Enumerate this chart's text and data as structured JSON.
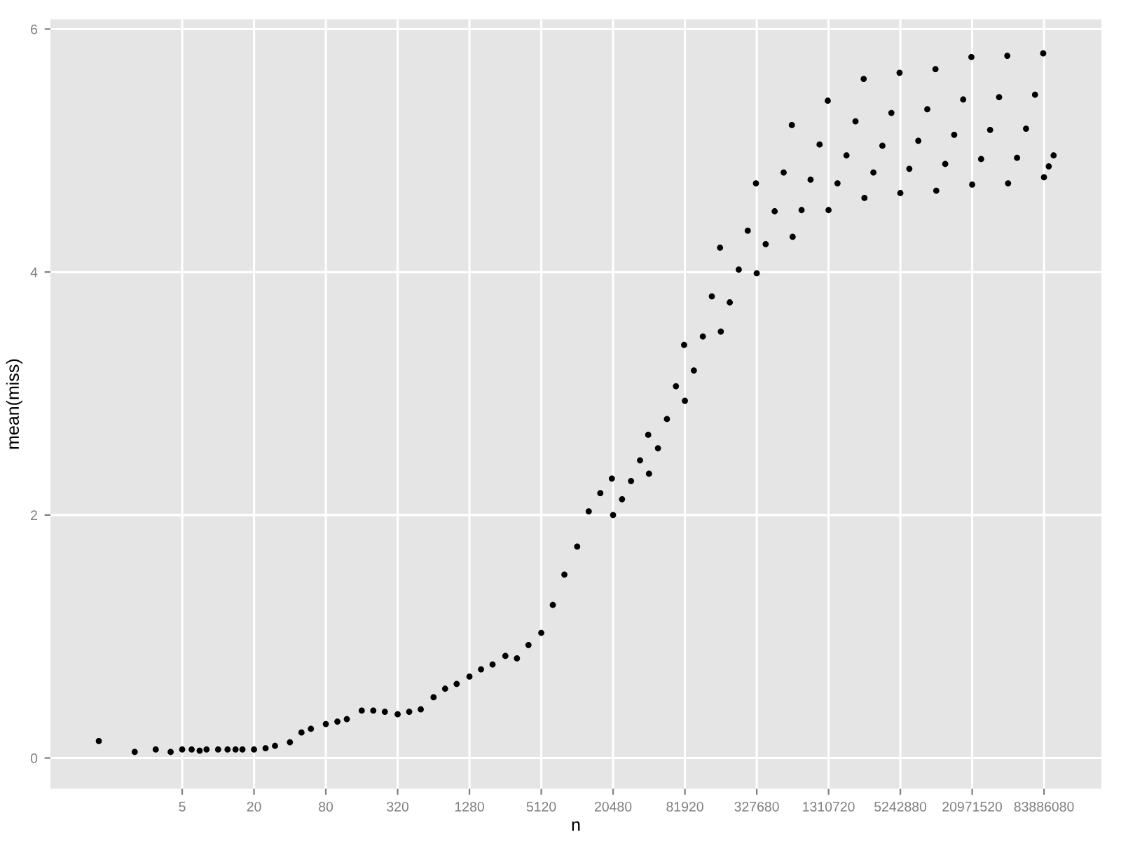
{
  "chart_data": {
    "type": "scatter",
    "xlabel": "n",
    "ylabel": "mean(miss)",
    "log": "x",
    "grid": true,
    "marker": "circle",
    "color": "#000000",
    "xlim": [
      0.393,
      254000000
    ],
    "ylim": [
      -0.254,
      6.08
    ],
    "xticks": [
      5,
      20,
      80,
      320,
      1280,
      5120,
      20480,
      81920,
      327680,
      1310720,
      5242880,
      20971520,
      83886080
    ],
    "yticks": [
      0,
      2,
      4,
      6
    ],
    "x": [
      1,
      2,
      3,
      4,
      5,
      6,
      7,
      8,
      10,
      12,
      14,
      16,
      20,
      25,
      30,
      40,
      50,
      60,
      80,
      100,
      120,
      160,
      200,
      250,
      320,
      400,
      500,
      640,
      800,
      1000,
      1280,
      1600,
      2000,
      2560,
      3200,
      4000,
      5120,
      6400,
      8000,
      10240,
      12800,
      16000,
      20000,
      20480,
      24351,
      28959,
      34447,
      40346,
      40960,
      48701,
      57917,
      68895,
      80691,
      81920,
      97403,
      115835,
      137789,
      161382,
      163840,
      194806,
      231670,
      275579,
      322765,
      327680,
      389612,
      463340,
      551158,
      645530,
      655360,
      779223,
      926679,
      1102316,
      1291059,
      1310720,
      1558446,
      1853358,
      2204631,
      2582118,
      2621440,
      3116892,
      3706716,
      4409262,
      5164237,
      5242880,
      6233784,
      7413432,
      8818524,
      10328474,
      10485760,
      12467569,
      14826865,
      17637048,
      20656947,
      20971520,
      24935137,
      29653729,
      35274097,
      41313894,
      41943040,
      49870275,
      59307459,
      70548193,
      82627789,
      83886080,
      92000000,
      101000000
    ],
    "values": [
      0.14,
      0.05,
      0.07,
      0.05,
      0.07,
      0.07,
      0.06,
      0.07,
      0.07,
      0.07,
      0.07,
      0.07,
      0.07,
      0.08,
      0.1,
      0.13,
      0.21,
      0.24,
      0.28,
      0.3,
      0.32,
      0.39,
      0.39,
      0.38,
      0.36,
      0.38,
      0.4,
      0.5,
      0.57,
      0.61,
      0.67,
      0.73,
      0.77,
      0.84,
      0.82,
      0.93,
      1.03,
      1.26,
      1.51,
      1.74,
      2.03,
      2.18,
      2.3,
      2.0,
      2.13,
      2.28,
      2.45,
      2.66,
      2.34,
      2.55,
      2.79,
      3.06,
      3.4,
      2.94,
      3.19,
      3.47,
      3.8,
      4.2,
      3.51,
      3.75,
      4.02,
      4.34,
      4.73,
      3.99,
      4.23,
      4.5,
      4.82,
      5.21,
      4.29,
      4.51,
      4.76,
      5.05,
      5.41,
      4.51,
      4.73,
      4.96,
      5.24,
      5.59,
      4.61,
      4.82,
      5.04,
      5.31,
      5.64,
      4.65,
      4.85,
      5.08,
      5.34,
      5.67,
      4.67,
      4.89,
      5.13,
      5.42,
      5.77,
      4.72,
      4.93,
      5.17,
      5.44,
      5.78,
      4.73,
      4.94,
      5.18,
      5.46,
      5.8,
      4.78,
      4.87,
      4.96
    ]
  }
}
